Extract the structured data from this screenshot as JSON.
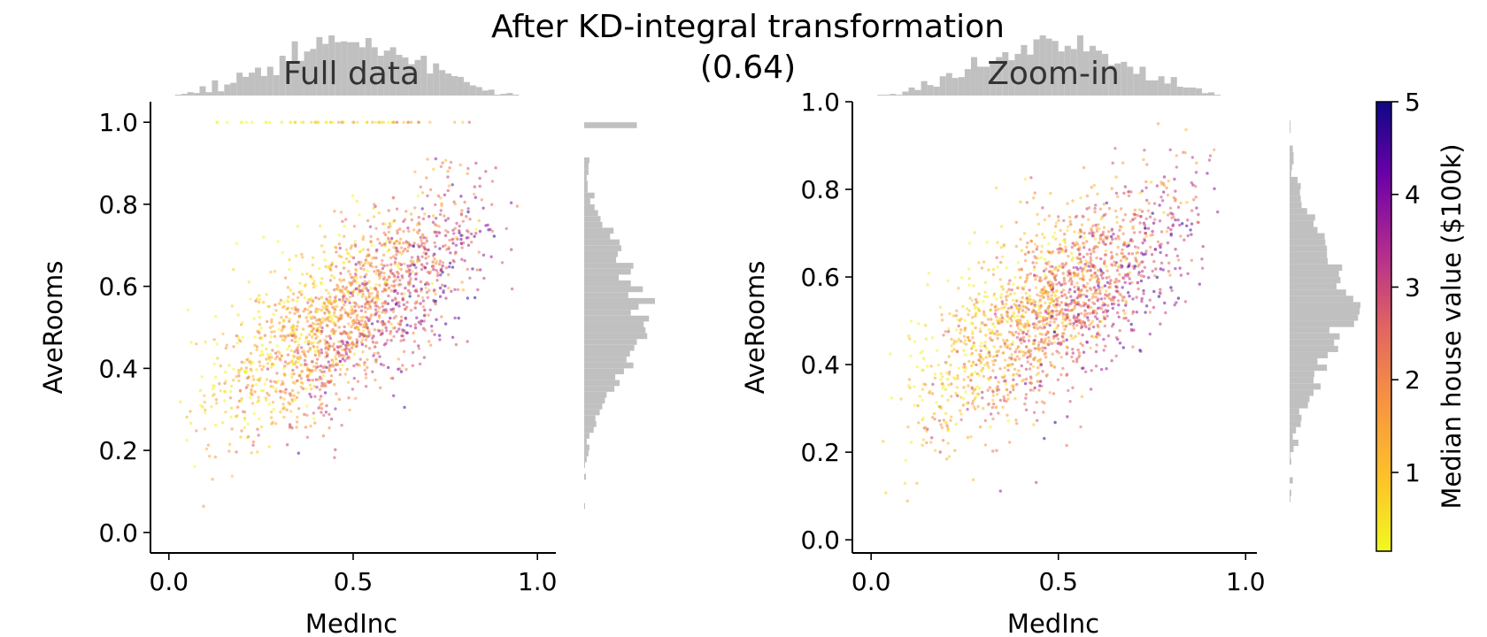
{
  "suptitle_line1": "After KD-integral transformation",
  "suptitle_line2": "(0.64)",
  "colors": {
    "marginal_hist": "#c0c0c0",
    "axis": "#000000",
    "panel_title": "#333333",
    "colormap": [
      "#f0f921",
      "#fdc328",
      "#f89441",
      "#e16462",
      "#b12a90",
      "#6a00a8",
      "#0d0887"
    ]
  },
  "chart_data": [
    {
      "type": "scatter",
      "panel": "left",
      "title": "Full data",
      "xlabel": "MedInc",
      "ylabel": "AveRooms",
      "xlim": [
        -0.05,
        1.05
      ],
      "ylim": [
        -0.05,
        1.05
      ],
      "xticks": [
        "0.0",
        "0.5",
        "1.0"
      ],
      "yticks": [
        "0.0",
        "0.2",
        "0.4",
        "0.6",
        "0.8",
        "1.0"
      ],
      "point_count": 1800,
      "trend": {
        "slope": 0.56,
        "intercept": 0.26,
        "spread": 0.1
      },
      "marginals": [
        "top histogram of MedInc",
        "right histogram of AveRooms"
      ]
    },
    {
      "type": "scatter",
      "panel": "right",
      "title": "Zoom-in",
      "xlabel": "MedInc",
      "ylabel": "AveRooms",
      "xlim": [
        -0.05,
        1.03
      ],
      "ylim": [
        -0.03,
        1.0
      ],
      "xticks": [
        "0.0",
        "0.5",
        "1.0"
      ],
      "yticks": [
        "0.0",
        "0.2",
        "0.4",
        "0.6",
        "0.8",
        "1.0"
      ],
      "point_count": 1800,
      "trend": {
        "slope": 0.56,
        "intercept": 0.26,
        "spread": 0.1
      },
      "marginals": [
        "top histogram of MedInc",
        "right histogram of AveRooms"
      ]
    }
  ],
  "colorbar": {
    "label": "Median house value ($100k)",
    "ticks": [
      "1",
      "2",
      "3",
      "4",
      "5"
    ],
    "range": [
      0.15,
      5.0
    ]
  }
}
